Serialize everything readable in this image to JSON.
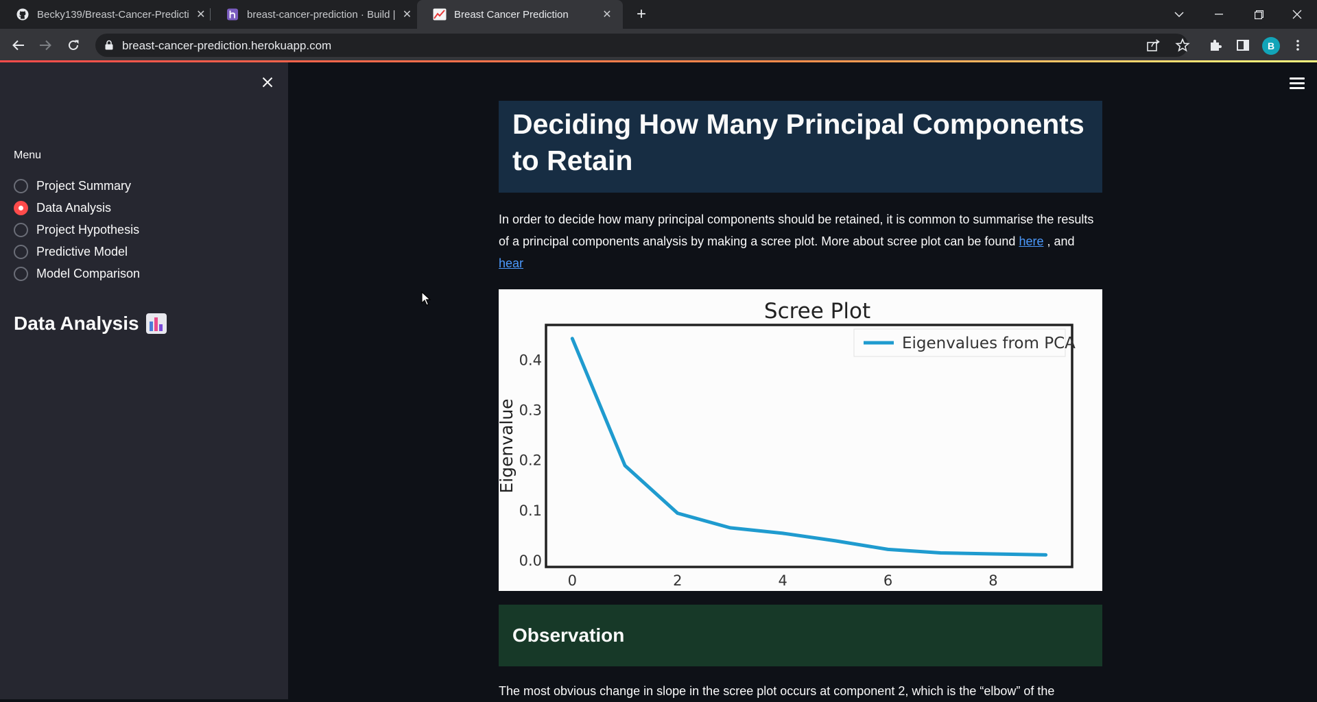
{
  "browser": {
    "tabs": [
      {
        "title": "Becky139/Breast-Cancer-Predicti",
        "icon": "github-icon",
        "active": false
      },
      {
        "title": "breast-cancer-prediction · Build |",
        "icon": "heroku-icon",
        "active": false
      },
      {
        "title": "Breast Cancer Prediction",
        "icon": "streamlit-chart-icon",
        "active": true
      }
    ],
    "url": "breast-cancer-prediction.herokuapp.com",
    "profile_initial": "B"
  },
  "sidebar": {
    "menu_label": "Menu",
    "items": [
      {
        "label": "Project Summary",
        "selected": false
      },
      {
        "label": "Data Analysis",
        "selected": true
      },
      {
        "label": "Project Hypothesis",
        "selected": false
      },
      {
        "label": "Predictive Model",
        "selected": false
      },
      {
        "label": "Model Comparison",
        "selected": false
      }
    ],
    "heading": "Data Analysis",
    "heading_icon": "bar-chart-emoji"
  },
  "main": {
    "title": "Deciding How Many Principal Components to Retain",
    "intro_text": "In order to decide how many principal components should be retained, it is common to summarise the results of a principal components analysis by making a scree plot. More about scree plot can be found ",
    "link1": "here",
    "link_sep": " , and ",
    "link2": "hear",
    "observation_heading": "Observation",
    "observation_text": "The most obvious change in slope in the scree plot occurs at component 2, which is the “elbow” of the"
  },
  "chart_data": {
    "type": "line",
    "title": "Scree Plot",
    "xlabel": "",
    "ylabel": "Eigenvalue",
    "x": [
      0,
      1,
      2,
      3,
      4,
      5,
      6,
      7,
      8,
      9
    ],
    "series": [
      {
        "name": "Eigenvalues from PCA",
        "values": [
          0.443,
          0.19,
          0.095,
          0.066,
          0.055,
          0.04,
          0.023,
          0.016,
          0.014,
          0.012
        ],
        "color": "#1f9bcf"
      }
    ],
    "xlim": [
      -0.5,
      9.5
    ],
    "ylim": [
      -0.012,
      0.47
    ],
    "xticks": [
      0,
      2,
      4,
      6,
      8
    ],
    "yticks": [
      0.0,
      0.1,
      0.2,
      0.3,
      0.4
    ],
    "legend": "top-right",
    "grid": false
  }
}
